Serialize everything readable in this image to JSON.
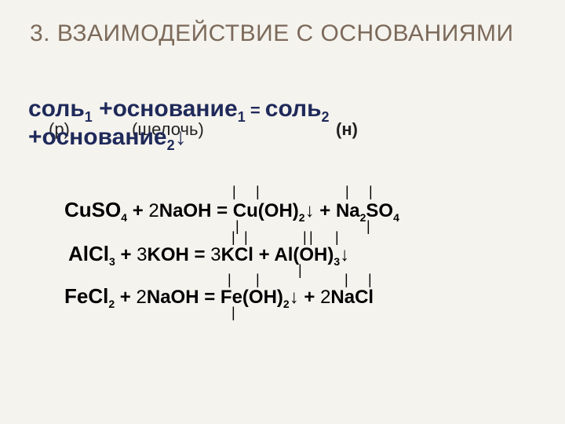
{
  "colors": {
    "background": "#f5f3ee",
    "heading": "#7c6a5a",
    "scheme_blue": "#1f2a5a",
    "body_text": "#000000"
  },
  "typography": {
    "heading_fontsize": 30,
    "scheme_fontsize": 30,
    "annotation_fontsize": 22,
    "equation_reagent_fontsize": 26,
    "equation_rest_fontsize": 24
  },
  "heading": {
    "number": "3.",
    "text": "ВЗАИМОДЕЙСТВИЕ  С ОСНОВАНИЯМИ"
  },
  "scheme": {
    "line1_salt1": "соль",
    "line1_sub1": "1",
    "line1_plus": " +",
    "line1_base1": "основание",
    "line1_sub_base1": "1",
    "line1_eq": " = ",
    "line1_salt2": "соль",
    "line1_sub2": "2",
    "line2_plus": "+",
    "line2_base2": "основание",
    "line2_sub_base2": "2",
    "line2_arrow": "↓"
  },
  "annotations": {
    "r": "(р)",
    "alkali": "(щелочь)",
    "n": "(н)"
  },
  "equations": [
    {
      "reagent": "CuSO",
      "reagent_sub": "4",
      "plus1": "  +  ",
      "coef_base": "2",
      "base": "NaOH",
      "eq": "  =  ",
      "prod1": "Cu(OH)",
      "prod1_sub": "2",
      "arrow": "↓",
      "plus2": "   +   ",
      "prod2_pre": "Na",
      "prod2_sub1": "2",
      "prod2_post": "SO",
      "prod2_sub2": "4"
    },
    {
      "reagent": "AlCl",
      "reagent_sub": "3",
      "plus1": "   +  ",
      "coef_base": "3",
      "base": "KOH",
      "eq": "   =   ",
      "coef_prod1": "3",
      "prod1": "KCl",
      "plus2": "   +   ",
      "prod2": "Al(OH)",
      "prod2_sub": "3",
      "arrow": "↓"
    },
    {
      "reagent": "FeCl",
      "reagent_sub": "2",
      "plus1": "  +  ",
      "coef_base": "2",
      "base": "NaOH",
      "eq": "  =  ",
      "prod1": "Fe(OH)",
      "prod1_sub": "2",
      "arrow": "↓",
      "plus2": "   + ",
      "coef_prod2": "2",
      "prod2": "NaCl"
    }
  ],
  "tick": "|"
}
